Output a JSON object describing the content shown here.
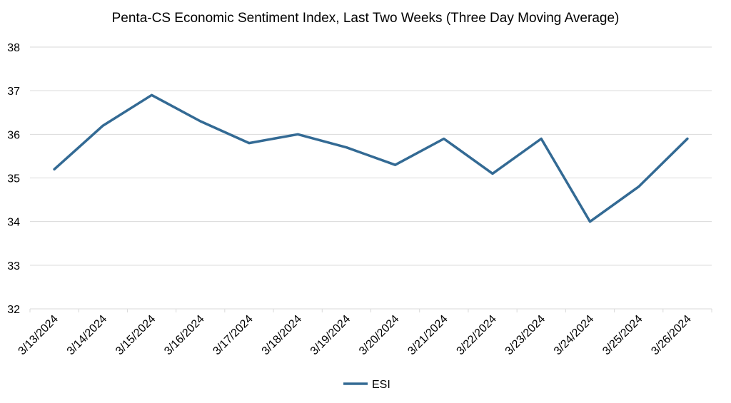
{
  "chart_data": {
    "type": "line",
    "title": "Penta-CS Economic Sentiment Index, Last Two Weeks (Three Day Moving Average)",
    "xlabel": "",
    "ylabel": "",
    "categories": [
      "3/13/2024",
      "3/14/2024",
      "3/15/2024",
      "3/16/2024",
      "3/17/2024",
      "3/18/2024",
      "3/19/2024",
      "3/20/2024",
      "3/21/2024",
      "3/22/2024",
      "3/23/2024",
      "3/24/2024",
      "3/25/2024",
      "3/26/2024"
    ],
    "series": [
      {
        "name": "ESI",
        "color": "#336a94",
        "values": [
          35.2,
          36.2,
          36.9,
          36.3,
          35.8,
          36.0,
          35.7,
          35.3,
          35.9,
          35.1,
          35.9,
          34.0,
          34.8,
          35.9
        ]
      }
    ],
    "ylim": [
      32,
      38
    ],
    "yticks": [
      32,
      33,
      34,
      35,
      36,
      37,
      38
    ],
    "grid": true,
    "legend": "bottom-center"
  }
}
